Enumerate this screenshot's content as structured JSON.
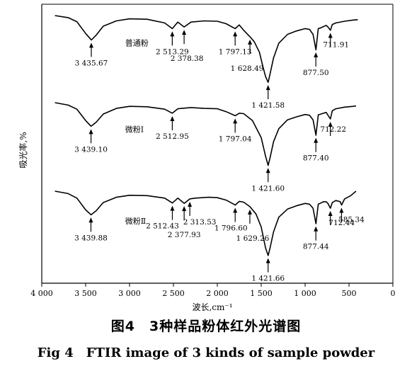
{
  "chart_data": {
    "type": "line",
    "title": "",
    "xlabel": "波长,cm⁻¹",
    "ylabel": "吸光率,%",
    "xlim": [
      4000,
      0
    ],
    "x_reversed": true,
    "x_ticks": [
      "4 000",
      "3 500",
      "3 000",
      "2 500",
      "2 000",
      "1 500",
      "1 000",
      "500",
      "0"
    ],
    "x_tick_values": [
      4000,
      3500,
      3000,
      2500,
      2000,
      1500,
      1000,
      500,
      0
    ],
    "grid": false,
    "legend": "none",
    "series": [
      {
        "name": "普通粉",
        "x": [
          3850,
          3700,
          3600,
          3500,
          3435,
          3380,
          3300,
          3150,
          3000,
          2800,
          2600,
          2513,
          2450,
          2378,
          2300,
          2150,
          2000,
          1900,
          1797,
          1750,
          1700,
          1628,
          1580,
          1520,
          1480,
          1450,
          1421,
          1400,
          1360,
          1300,
          1200,
          1100,
          1000,
          950,
          910,
          877,
          850,
          820,
          790,
          760,
          740,
          711,
          690,
          650,
          550,
          450,
          400
        ],
        "y": [
          0.0,
          0.25,
          0.75,
          2.2,
          3.0,
          2.4,
          1.3,
          0.65,
          0.4,
          0.45,
          0.9,
          1.6,
          0.8,
          1.4,
          0.8,
          0.65,
          0.7,
          1.0,
          1.6,
          1.15,
          1.8,
          2.6,
          3.2,
          4.5,
          6.3,
          7.5,
          8.2,
          7.2,
          5.2,
          3.4,
          2.3,
          1.9,
          1.6,
          1.7,
          2.3,
          4.2,
          1.6,
          1.5,
          1.35,
          1.2,
          1.4,
          1.8,
          1.1,
          0.9,
          0.7,
          0.55,
          0.5
        ]
      },
      {
        "name": "微粉Ⅰ",
        "x": [
          3850,
          3700,
          3600,
          3500,
          3439,
          3380,
          3300,
          3150,
          3000,
          2800,
          2600,
          2513,
          2450,
          2300,
          2150,
          2000,
          1900,
          1797,
          1750,
          1700,
          1600,
          1500,
          1450,
          1421,
          1400,
          1360,
          1300,
          1200,
          1100,
          1000,
          950,
          910,
          877,
          850,
          820,
          790,
          760,
          712,
          690,
          650,
          550,
          450,
          420
        ],
        "y": [
          0.0,
          0.3,
          0.8,
          2.2,
          2.9,
          2.4,
          1.4,
          0.7,
          0.45,
          0.5,
          0.8,
          1.3,
          0.75,
          0.6,
          0.7,
          0.75,
          1.1,
          1.6,
          1.3,
          1.35,
          2.2,
          4.3,
          6.6,
          7.7,
          6.8,
          4.8,
          3.2,
          2.1,
          1.75,
          1.45,
          1.55,
          2.1,
          4.0,
          1.5,
          1.4,
          1.3,
          1.2,
          2.0,
          1.0,
          0.75,
          0.55,
          0.45,
          0.4
        ]
      },
      {
        "name": "微粉Ⅱ",
        "x": [
          3850,
          3700,
          3600,
          3500,
          3439,
          3380,
          3300,
          3150,
          3000,
          2800,
          2600,
          2512,
          2450,
          2377,
          2313,
          2250,
          2100,
          2000,
          1900,
          1796,
          1750,
          1700,
          1629,
          1560,
          1500,
          1450,
          1421,
          1400,
          1360,
          1300,
          1200,
          1100,
          1000,
          950,
          910,
          877,
          850,
          820,
          790,
          760,
          740,
          712,
          690,
          650,
          600,
          585,
          550,
          480,
          420
        ],
        "y": [
          0.0,
          0.3,
          0.85,
          2.3,
          2.9,
          2.4,
          1.4,
          0.75,
          0.5,
          0.55,
          0.85,
          1.45,
          0.85,
          1.5,
          0.95,
          0.85,
          0.75,
          0.8,
          1.1,
          1.7,
          1.25,
          1.35,
          1.9,
          2.8,
          4.4,
          7.0,
          7.9,
          7.0,
          5.0,
          3.2,
          2.2,
          1.8,
          1.5,
          1.6,
          2.1,
          4.0,
          1.6,
          1.45,
          1.3,
          1.3,
          1.5,
          2.1,
          1.4,
          1.15,
          1.3,
          1.7,
          0.95,
          0.55,
          0.0
        ]
      }
    ],
    "annotations": [
      {
        "series": 0,
        "x": 3435.67,
        "label": "3 435.67"
      },
      {
        "series": 0,
        "x": 2513.29,
        "label": "2 513.29"
      },
      {
        "series": 0,
        "x": 2378.38,
        "label": "2 378.38"
      },
      {
        "series": 0,
        "x": 1797.13,
        "label": "1 797.13"
      },
      {
        "series": 0,
        "x": 1628.49,
        "label": "1 628.49"
      },
      {
        "series": 0,
        "x": 1421.58,
        "label": "1 421.58"
      },
      {
        "series": 0,
        "x": 877.5,
        "label": "877.50"
      },
      {
        "series": 0,
        "x": 711.91,
        "label": "711.91"
      },
      {
        "series": 1,
        "x": 3439.1,
        "label": "3 439.10"
      },
      {
        "series": 1,
        "x": 2512.95,
        "label": "2 512.95"
      },
      {
        "series": 1,
        "x": 1797.04,
        "label": "1 797.04"
      },
      {
        "series": 1,
        "x": 1421.6,
        "label": "1 421.60"
      },
      {
        "series": 1,
        "x": 877.4,
        "label": "877.40"
      },
      {
        "series": 1,
        "x": 712.22,
        "label": "712.22"
      },
      {
        "series": 2,
        "x": 3439.88,
        "label": "3 439.88"
      },
      {
        "series": 2,
        "x": 2512.43,
        "label": "2 512.43"
      },
      {
        "series": 2,
        "x": 2377.93,
        "label": "2 377.93"
      },
      {
        "series": 2,
        "x": 2313.53,
        "label": "2 313.53"
      },
      {
        "series": 2,
        "x": 1796.6,
        "label": "1 796.60"
      },
      {
        "series": 2,
        "x": 1629.26,
        "label": "1 629.26"
      },
      {
        "series": 2,
        "x": 1421.66,
        "label": "1 421.66"
      },
      {
        "series": 2,
        "x": 877.44,
        "label": "877.44"
      },
      {
        "series": 2,
        "x": 712.44,
        "label": "712.44"
      },
      {
        "series": 2,
        "x": 585.34,
        "label": "585.34"
      }
    ]
  },
  "caption": {
    "cn": "图4　3种样品粉体红外光谱图",
    "en": "Fig 4　FTIR image of 3 kinds of sample powder"
  }
}
